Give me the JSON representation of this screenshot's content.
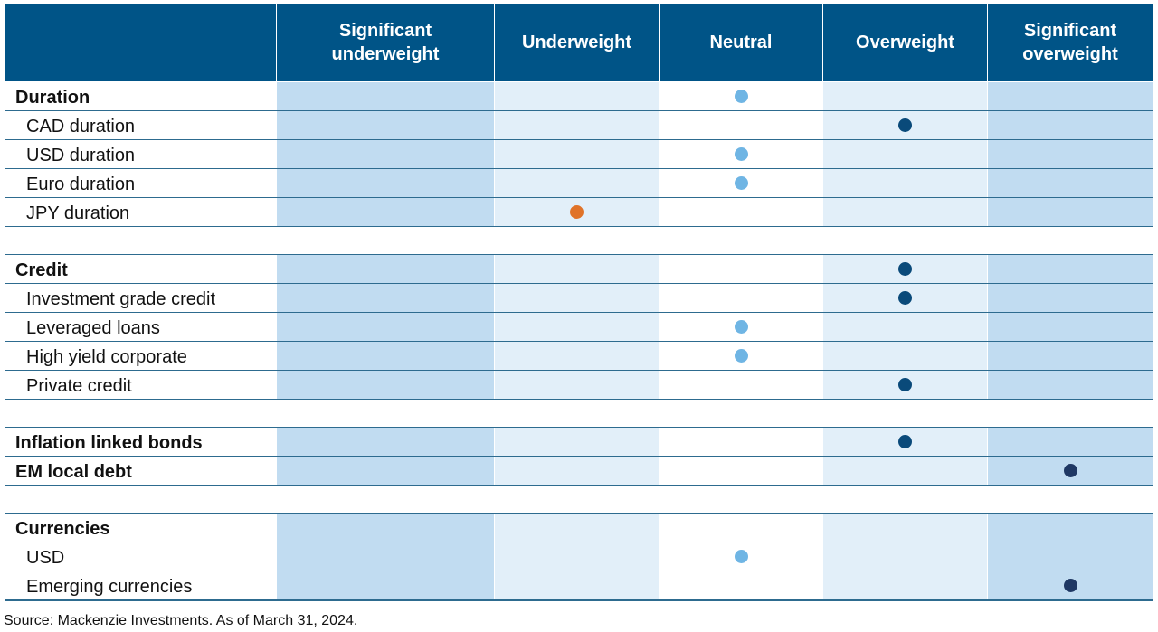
{
  "chart_data": {
    "type": "table",
    "columns": [
      "Significant\nunderweight",
      "Underweight",
      "Neutral",
      "Overweight",
      "Significant\noverweight"
    ],
    "groups": [
      {
        "rows": [
          {
            "label": "Duration",
            "kind": "category",
            "position": "Neutral"
          },
          {
            "label": "CAD duration",
            "kind": "sub",
            "position": "Overweight"
          },
          {
            "label": "USD duration",
            "kind": "sub",
            "position": "Neutral"
          },
          {
            "label": "Euro duration",
            "kind": "sub",
            "position": "Neutral"
          },
          {
            "label": "JPY duration",
            "kind": "sub",
            "position": "Underweight"
          }
        ]
      },
      {
        "rows": [
          {
            "label": "Credit",
            "kind": "category",
            "position": "Overweight"
          },
          {
            "label": "Investment grade credit",
            "kind": "sub",
            "position": "Overweight"
          },
          {
            "label": "Leveraged loans",
            "kind": "sub",
            "position": "Neutral"
          },
          {
            "label": "High yield corporate",
            "kind": "sub",
            "position": "Neutral"
          },
          {
            "label": "Private credit",
            "kind": "sub",
            "position": "Overweight"
          }
        ]
      },
      {
        "rows": [
          {
            "label": "Inflation linked bonds",
            "kind": "category",
            "position": "Overweight"
          },
          {
            "label": "EM local debt",
            "kind": "category",
            "position": "Significant\noverweight"
          }
        ]
      },
      {
        "rows": [
          {
            "label": "Currencies",
            "kind": "category",
            "position": null
          },
          {
            "label": "USD",
            "kind": "sub",
            "position": "Neutral"
          },
          {
            "label": "Emerging currencies",
            "kind": "sub",
            "position": "Significant\noverweight"
          }
        ]
      }
    ]
  },
  "colors": {
    "header_bg": "#005487",
    "header_text": "#ffffff",
    "column_bg": [
      "#c1dcf1",
      "#e2eff9",
      "#ffffff",
      "#e2eff9",
      "#c1dcf1"
    ],
    "dot_by_position": {
      "Significant\nunderweight": "#e07329",
      "Underweight": "#e07329",
      "Neutral": "#6fb5e4",
      "Overweight": "#0a4a7a",
      "Significant\noverweight": "#1f3864"
    }
  },
  "source_note": "Source: Mackenzie Investments. As of March 31, 2024."
}
